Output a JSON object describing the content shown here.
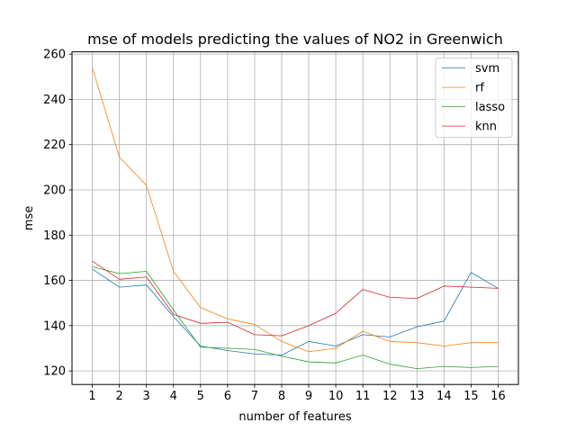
{
  "chart_data": {
    "type": "line",
    "title": "mse of models predicting the values of NO2 in Greenwich",
    "xlabel": "number of features",
    "ylabel": "mse",
    "x": [
      1,
      2,
      3,
      4,
      5,
      6,
      7,
      8,
      9,
      10,
      11,
      12,
      13,
      14,
      15,
      16
    ],
    "xticks": [
      "1",
      "2",
      "3",
      "4",
      "5",
      "6",
      "7",
      "8",
      "9",
      "10",
      "11",
      "12",
      "13",
      "14",
      "15",
      "16"
    ],
    "yticks": [
      "120",
      "140",
      "160",
      "180",
      "200",
      "220",
      "240",
      "260"
    ],
    "ylim": [
      114,
      261
    ],
    "xlim": [
      0.25,
      16.75
    ],
    "grid": true,
    "legend_position": "top-right",
    "series": [
      {
        "name": "svm",
        "color": "#1f77b4",
        "values": [
          165,
          157,
          158,
          144,
          131,
          129,
          127.5,
          127,
          133,
          131,
          136,
          135,
          139.5,
          142,
          163.5,
          156.5
        ]
      },
      {
        "name": "rf",
        "color": "#ff7f0e",
        "values": [
          254,
          214.5,
          202,
          164,
          148,
          143,
          140.5,
          133,
          128.5,
          130,
          137.5,
          133,
          132.5,
          131,
          132.5,
          132.5
        ]
      },
      {
        "name": "lasso",
        "color": "#2ca02c",
        "values": [
          166,
          163,
          164,
          147,
          130.5,
          130,
          129.5,
          126.5,
          124,
          123.5,
          127,
          123,
          121,
          122,
          121.5,
          122
        ]
      },
      {
        "name": "knn",
        "color": "#d62728",
        "values": [
          168.5,
          160.5,
          161.5,
          145,
          141,
          141.5,
          136,
          135.5,
          140,
          145.5,
          156,
          152.5,
          152,
          157.5,
          157,
          156.5
        ]
      }
    ]
  }
}
